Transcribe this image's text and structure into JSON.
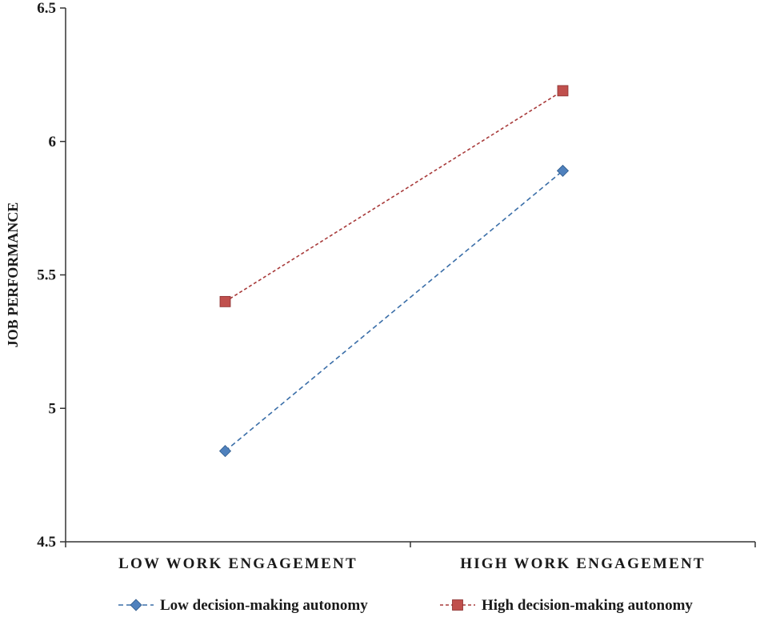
{
  "chart_data": {
    "type": "line",
    "categories": [
      "LOW WORK ENGAGEMENT",
      "HIGH WORK ENGAGEMENT"
    ],
    "series": [
      {
        "name": "Low decision-making autonomy",
        "values": [
          4.84,
          5.89
        ],
        "color": "#4f81bd",
        "marker": "diamond",
        "dash": "dashed"
      },
      {
        "name": "High decision-making autonomy",
        "values": [
          5.4,
          6.19
        ],
        "color": "#c0504d",
        "marker": "square",
        "dash": "dotted"
      }
    ],
    "ylabel": "JOB PERFORMANCE",
    "xlabel": "",
    "ylim": [
      4.5,
      6.5
    ],
    "yticks": [
      "4.5",
      "5",
      "5.5",
      "6",
      "6.5"
    ],
    "grid": false,
    "legend_position": "bottom"
  }
}
